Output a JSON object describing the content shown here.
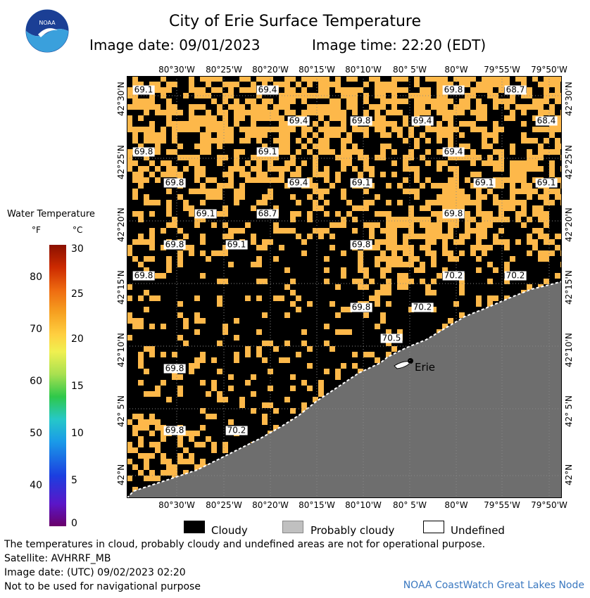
{
  "header": {
    "title": "City of Erie Surface Temperature",
    "image_date": "Image date: 09/01/2023",
    "image_time": "Image time: 22:20 (EDT)"
  },
  "logo": {
    "text": "NOAA"
  },
  "map": {
    "lon_labels": [
      "80°30'W",
      "80°25'W",
      "80°20'W",
      "80°15'W",
      "80°10'W",
      "80° 5'W",
      "80°W",
      "79°55'W",
      "79°50'W"
    ],
    "lat_labels": [
      "42°30'N",
      "42°25'N",
      "42°20'N",
      "42°15'N",
      "42°10'N",
      "42° 5'N",
      "42°N"
    ],
    "city": "Erie",
    "temperatures": [
      {
        "label": "69.1"
      },
      {
        "label": "69.4"
      },
      {
        "label": "69.8"
      },
      {
        "label": "68.7"
      },
      {
        "label": "69.4"
      },
      {
        "label": "69.8"
      },
      {
        "label": "69.4"
      },
      {
        "label": "68.4"
      },
      {
        "label": "69.8"
      },
      {
        "label": "69.1"
      },
      {
        "label": "69.4"
      },
      {
        "label": "69.8"
      },
      {
        "label": "69.4"
      },
      {
        "label": "69.1"
      },
      {
        "label": "69.1"
      },
      {
        "label": "69.1"
      },
      {
        "label": "69.1"
      },
      {
        "label": "68.7"
      },
      {
        "label": "69.8"
      },
      {
        "label": "69.8"
      },
      {
        "label": "69.1"
      },
      {
        "label": "69.8"
      },
      {
        "label": "69.8"
      },
      {
        "label": "70.2"
      },
      {
        "label": "70.2"
      },
      {
        "label": "69.8"
      },
      {
        "label": "70.2"
      },
      {
        "label": "70.5"
      },
      {
        "label": "69.8"
      },
      {
        "label": "69.8"
      },
      {
        "label": "70.2"
      }
    ],
    "colors": {
      "water": "#fdb84a",
      "cloud": "#000000",
      "land": "#6e6e6e"
    }
  },
  "legend": {
    "title": "Water Temperature",
    "unit_f": "°F",
    "unit_c": "°C",
    "f_ticks": [
      "80",
      "70",
      "60",
      "50",
      "40"
    ],
    "c_ticks": [
      "30",
      "25",
      "20",
      "15",
      "10",
      "5",
      "0"
    ],
    "cloudy": "Cloudy",
    "probably_cloudy": "Probably cloudy",
    "undefined": "Undefined"
  },
  "footer": {
    "line1": "The temperatures in cloud, probably cloudy and undefined areas are not for operational purpose.",
    "line2": "Satellite: AVHRRF_MB",
    "line3": "Image date: (UTC) 09/02/2023  02:20",
    "line4": "Not to be used for navigational purpose",
    "credit": "NOAA CoastWatch Great Lakes Node"
  }
}
